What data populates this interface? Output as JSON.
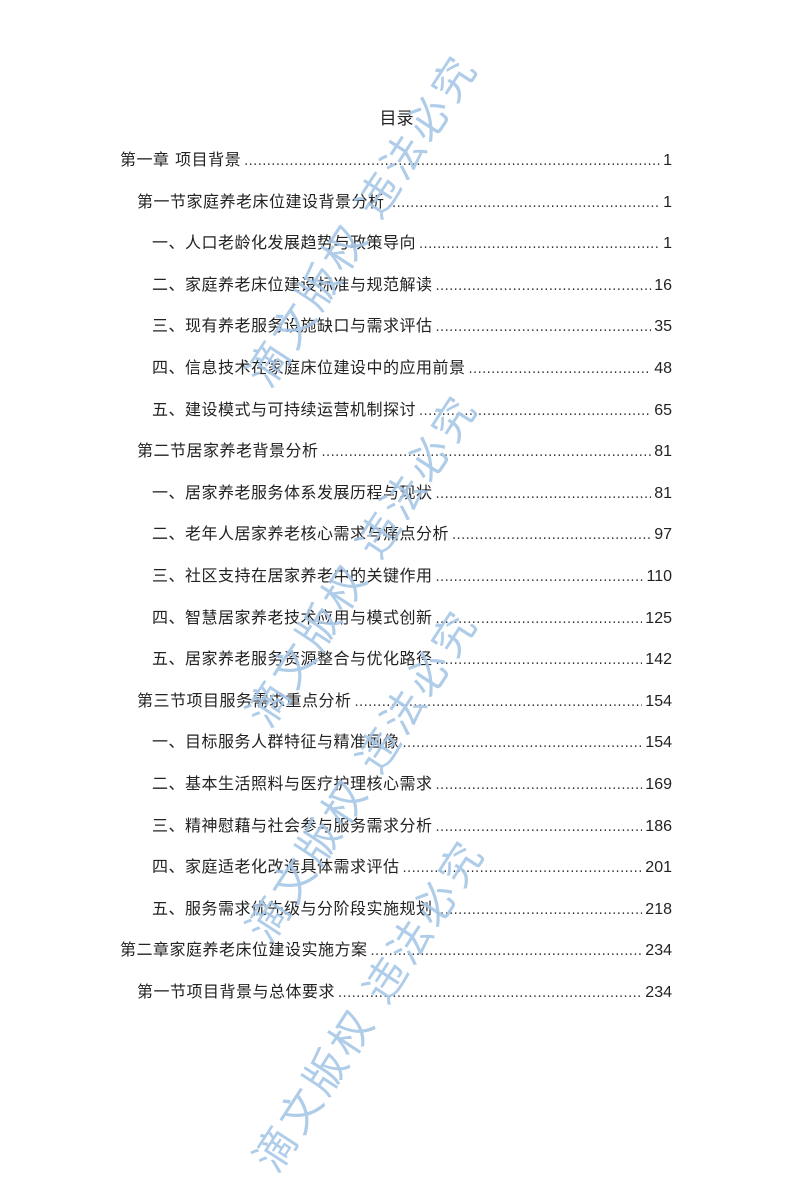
{
  "title": "目录",
  "watermark": "滴文版权 违法必究",
  "watermark_color": "#a7c7e7",
  "entries": [
    {
      "label": "第一章  项目背景",
      "page": "1",
      "level": 0
    },
    {
      "label": "第一节家庭养老床位建设背景分析",
      "page": "1",
      "level": 1
    },
    {
      "label": "一、人口老龄化发展趋势与政策导向",
      "page": "1",
      "level": 2
    },
    {
      "label": "二、家庭养老床位建设标准与规范解读",
      "page": "16",
      "level": 2
    },
    {
      "label": "三、现有养老服务设施缺口与需求评估",
      "page": "35",
      "level": 2
    },
    {
      "label": "四、信息技术在家庭床位建设中的应用前景",
      "page": "48",
      "level": 2
    },
    {
      "label": "五、建设模式与可持续运营机制探讨",
      "page": "65",
      "level": 2
    },
    {
      "label": "第二节居家养老背景分析",
      "page": "81",
      "level": 1
    },
    {
      "label": "一、居家养老服务体系发展历程与现状",
      "page": "81",
      "level": 2
    },
    {
      "label": "二、老年人居家养老核心需求与痛点分析",
      "page": "97",
      "level": 2
    },
    {
      "label": "三、社区支持在居家养老中的关键作用",
      "page": "110",
      "level": 2
    },
    {
      "label": "四、智慧居家养老技术应用与模式创新",
      "page": "125",
      "level": 2
    },
    {
      "label": "五、居家养老服务资源整合与优化路径",
      "page": "142",
      "level": 2
    },
    {
      "label": "第三节项目服务需求重点分析",
      "page": "154",
      "level": 1
    },
    {
      "label": "一、目标服务人群特征与精准画像",
      "page": "154",
      "level": 2
    },
    {
      "label": "二、基本生活照料与医疗护理核心需求",
      "page": "169",
      "level": 2
    },
    {
      "label": "三、精神慰藉与社会参与服务需求分析",
      "page": "186",
      "level": 2
    },
    {
      "label": "四、家庭适老化改造具体需求评估",
      "page": "201",
      "level": 2
    },
    {
      "label": "五、服务需求优先级与分阶段实施规划",
      "page": "218",
      "level": 2
    },
    {
      "label": "第二章家庭养老床位建设实施方案",
      "page": "234",
      "level": 0
    },
    {
      "label": "第一节项目背景与总体要求",
      "page": "234",
      "level": 1
    }
  ]
}
